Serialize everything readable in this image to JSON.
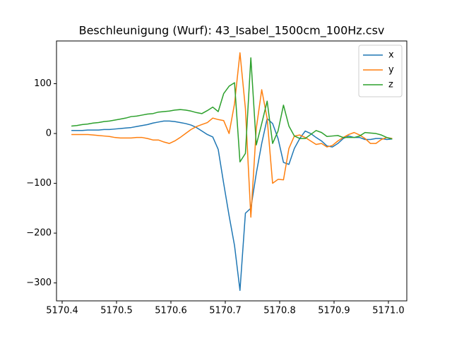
{
  "chart_data": {
    "type": "line",
    "title": "Beschleunigung (Wurf): 43_Isabel_1500cm_100Hz.csv",
    "x": [
      5170.417,
      5170.427,
      5170.437,
      5170.447,
      5170.457,
      5170.467,
      5170.477,
      5170.487,
      5170.497,
      5170.507,
      5170.517,
      5170.527,
      5170.537,
      5170.547,
      5170.557,
      5170.567,
      5170.577,
      5170.587,
      5170.597,
      5170.607,
      5170.617,
      5170.627,
      5170.637,
      5170.647,
      5170.657,
      5170.667,
      5170.677,
      5170.687,
      5170.697,
      5170.707,
      5170.717,
      5170.727,
      5170.737,
      5170.747,
      5170.757,
      5170.767,
      5170.777,
      5170.787,
      5170.797,
      5170.807,
      5170.817,
      5170.827,
      5170.837,
      5170.847,
      5170.857,
      5170.867,
      5170.877,
      5170.887,
      5170.897,
      5170.907,
      5170.917,
      5170.927,
      5170.937,
      5170.947,
      5170.957,
      5170.967,
      5170.977,
      5170.987,
      5170.997,
      5171.007
    ],
    "series": [
      {
        "name": "x",
        "color": "#1f77b4",
        "values": [
          6,
          6,
          6,
          7,
          7,
          7,
          8,
          8,
          9,
          10,
          11,
          12,
          14,
          16,
          18,
          21,
          23,
          25,
          25,
          24,
          22,
          20,
          17,
          12,
          5,
          -2,
          -7,
          -32,
          -100,
          -165,
          -225,
          -315,
          -160,
          -150,
          -80,
          -20,
          30,
          20,
          -10,
          -58,
          -62,
          -30,
          -10,
          5,
          0,
          -8,
          -15,
          -25,
          -27,
          -20,
          -10,
          -5,
          -8,
          -8,
          -12,
          -12,
          -10,
          -10,
          -12,
          -11
        ]
      },
      {
        "name": "y",
        "color": "#ff7f0e",
        "values": [
          -2,
          -2,
          -2,
          -2,
          -3,
          -4,
          -5,
          -6,
          -8,
          -9,
          -9,
          -9,
          -8,
          -8,
          -10,
          -13,
          -13,
          -17,
          -20,
          -15,
          -8,
          0,
          8,
          14,
          18,
          22,
          31,
          28,
          26,
          0,
          60,
          162,
          50,
          -168,
          10,
          88,
          30,
          -100,
          -92,
          -93,
          -30,
          -5,
          -3,
          -8,
          -15,
          -22,
          -20,
          -27,
          -24,
          -15,
          -8,
          -2,
          2,
          -3,
          -10,
          -20,
          -20,
          -12,
          -8,
          -10
        ]
      },
      {
        "name": "z",
        "color": "#2ca02c",
        "values": [
          15,
          16,
          18,
          19,
          21,
          22,
          24,
          25,
          27,
          29,
          31,
          34,
          35,
          37,
          39,
          40,
          43,
          44,
          45,
          47,
          48,
          47,
          45,
          42,
          40,
          46,
          53,
          44,
          80,
          95,
          102,
          -57,
          -40,
          152,
          -23,
          20,
          65,
          -20,
          5,
          57,
          15,
          -5,
          -10,
          -10,
          -2,
          6,
          2,
          -6,
          -5,
          -4,
          -8,
          -8,
          -8,
          -5,
          2,
          1,
          0,
          -3,
          -8,
          -11
        ]
      }
    ],
    "xlim": [
      5170.3896,
      5171.0338
    ],
    "xticks": [
      5170.4,
      5170.5,
      5170.6,
      5170.7,
      5170.8,
      5170.9,
      {
        "value": 5171,
        "label": "5171.0"
      }
    ],
    "ylim": [
      -336,
      185.8
    ],
    "yticks": [
      {
        "value": -300,
        "label": "−300"
      },
      {
        "value": -200,
        "label": "−200"
      },
      {
        "value": -100,
        "label": "−100"
      },
      0,
      100
    ],
    "legend": "upper right"
  }
}
